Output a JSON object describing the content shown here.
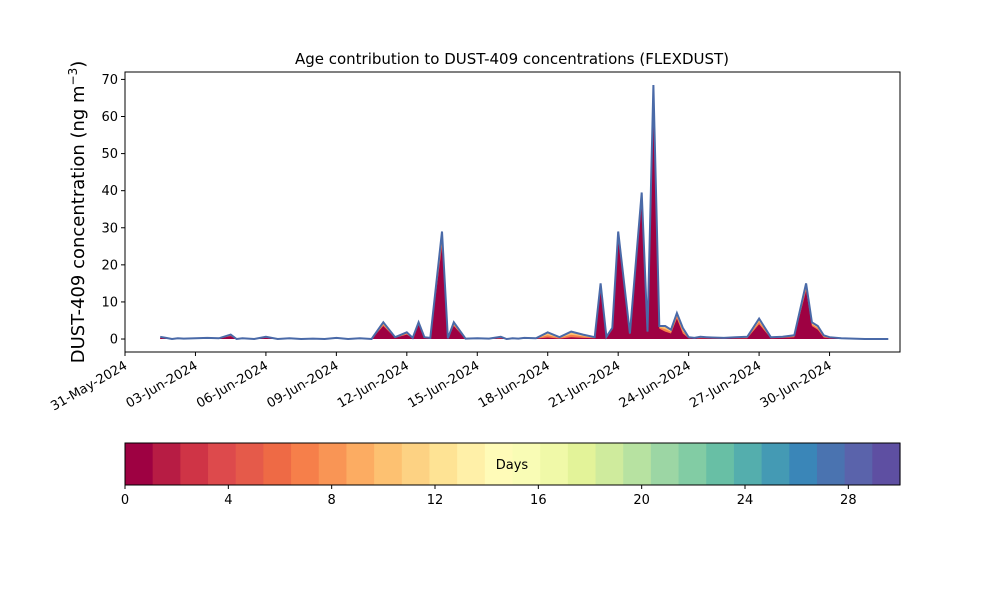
{
  "chart_data": {
    "type": "area",
    "title": "Age contribution to DUST-409 concentrations (FLEXDUST)",
    "ylabel_main": "DUST-409 concentration (ng m",
    "ylabel_sup": "−3",
    "ylabel_close": ")",
    "xlabel": "",
    "ylim": [
      -3.5,
      72
    ],
    "yticks": [
      0,
      10,
      20,
      30,
      40,
      50,
      60,
      70
    ],
    "xlim": [
      "2024-05-31T00:00",
      "2024-07-03T00:00"
    ],
    "xticks": [
      "31-May-2024",
      "03-Jun-2024",
      "06-Jun-2024",
      "09-Jun-2024",
      "12-Jun-2024",
      "15-Jun-2024",
      "18-Jun-2024",
      "21-Jun-2024",
      "24-Jun-2024",
      "27-Jun-2024",
      "30-Jun-2024"
    ],
    "grid": false,
    "total_color": "#4a6aa8",
    "series_total": {
      "name": "",
      "x": [
        "2024-06-01T12:00",
        "2024-06-01T18:00",
        "2024-06-02T00:00",
        "2024-06-02T06:00",
        "2024-06-02T12:00",
        "2024-06-03T00:00",
        "2024-06-03T12:00",
        "2024-06-04T00:00",
        "2024-06-04T12:00",
        "2024-06-04T18:00",
        "2024-06-05T00:00",
        "2024-06-05T12:00",
        "2024-06-06T00:00",
        "2024-06-06T12:00",
        "2024-06-07T00:00",
        "2024-06-07T12:00",
        "2024-06-08T00:00",
        "2024-06-08T12:00",
        "2024-06-09T00:00",
        "2024-06-09T12:00",
        "2024-06-10T00:00",
        "2024-06-10T12:00",
        "2024-06-11T00:00",
        "2024-06-11T12:00",
        "2024-06-12T00:00",
        "2024-06-12T06:00",
        "2024-06-12T12:00",
        "2024-06-12T18:00",
        "2024-06-13T00:00",
        "2024-06-13T12:00",
        "2024-06-13T18:00",
        "2024-06-14T00:00",
        "2024-06-14T12:00",
        "2024-06-15T00:00",
        "2024-06-15T12:00",
        "2024-06-16T00:00",
        "2024-06-16T06:00",
        "2024-06-16T12:00",
        "2024-06-16T18:00",
        "2024-06-17T00:00",
        "2024-06-17T12:00",
        "2024-06-18T00:00",
        "2024-06-18T12:00",
        "2024-06-19T00:00",
        "2024-06-19T12:00",
        "2024-06-20T00:00",
        "2024-06-20T06:00",
        "2024-06-20T12:00",
        "2024-06-20T18:00",
        "2024-06-21T00:00",
        "2024-06-21T12:00",
        "2024-06-22T00:00",
        "2024-06-22T06:00",
        "2024-06-22T12:00",
        "2024-06-22T18:00",
        "2024-06-23T00:00",
        "2024-06-23T06:00",
        "2024-06-23T12:00",
        "2024-06-23T18:00",
        "2024-06-24T00:00",
        "2024-06-24T06:00",
        "2024-06-24T12:00",
        "2024-06-24T18:00",
        "2024-06-25T00:00",
        "2024-06-25T12:00",
        "2024-06-26T00:00",
        "2024-06-26T12:00",
        "2024-06-27T00:00",
        "2024-06-27T12:00",
        "2024-06-28T00:00",
        "2024-06-28T12:00",
        "2024-06-29T00:00",
        "2024-06-29T06:00",
        "2024-06-29T12:00",
        "2024-06-29T18:00",
        "2024-06-30T00:00",
        "2024-06-30T12:00",
        "2024-07-01T00:00",
        "2024-07-01T12:00",
        "2024-07-02T00:00",
        "2024-07-02T12:00"
      ],
      "y": [
        0.6,
        0.3,
        0.0,
        0.2,
        0.1,
        0.2,
        0.3,
        0.2,
        1.2,
        0.0,
        0.2,
        0.0,
        0.6,
        0.0,
        0.2,
        0.0,
        0.1,
        0.0,
        0.3,
        0.0,
        0.2,
        0.0,
        4.5,
        0.5,
        1.8,
        0.3,
        4.5,
        0.5,
        0.3,
        29.0,
        0.2,
        4.5,
        0.1,
        0.2,
        0.1,
        0.6,
        0.0,
        0.2,
        0.1,
        0.3,
        0.2,
        1.8,
        0.5,
        2.0,
        1.2,
        0.5,
        15.0,
        0.6,
        3.0,
        29.0,
        1.5,
        39.5,
        2.0,
        68.5,
        3.5,
        3.5,
        2.5,
        7.0,
        3.0,
        0.5,
        0.3,
        0.6,
        0.5,
        0.4,
        0.3,
        0.5,
        0.6,
        5.5,
        0.5,
        0.6,
        1.0,
        15.0,
        4.5,
        3.5,
        1.0,
        0.5,
        0.2,
        0.1,
        0.0,
        0.0,
        0.0
      ]
    },
    "series_young": {
      "name": "",
      "y": [
        0.3,
        0.1,
        0.0,
        0.1,
        0.0,
        0.1,
        0.1,
        0.1,
        0.8,
        0.0,
        0.1,
        0.0,
        0.3,
        0.0,
        0.1,
        0.0,
        0.0,
        0.0,
        0.1,
        0.0,
        0.1,
        0.0,
        3.5,
        0.3,
        1.2,
        0.2,
        3.8,
        0.3,
        0.2,
        25.0,
        0.1,
        3.5,
        0.0,
        0.1,
        0.0,
        0.2,
        0.0,
        0.1,
        0.0,
        0.1,
        0.1,
        0.4,
        0.1,
        0.5,
        0.3,
        0.2,
        13.0,
        0.3,
        2.5,
        27.0,
        1.2,
        37.0,
        1.6,
        66.0,
        2.8,
        2.0,
        1.5,
        5.5,
        1.5,
        0.2,
        0.1,
        0.2,
        0.2,
        0.1,
        0.1,
        0.2,
        0.2,
        4.0,
        0.2,
        0.3,
        0.5,
        13.0,
        3.5,
        2.5,
        0.4,
        0.2,
        0.1,
        0.0,
        0.0,
        0.0,
        0.0
      ]
    },
    "colorbar": {
      "label": "Days",
      "min": 0,
      "max": 30,
      "ticks": [
        0,
        4,
        8,
        12,
        16,
        20,
        24,
        28
      ],
      "colors": [
        "#9e0142",
        "#b71c44",
        "#cf3446",
        "#dd4a4c",
        "#e55a4a",
        "#ee6a45",
        "#f67f4a",
        "#f99555",
        "#fcac62",
        "#fdc171",
        "#fdd283",
        "#fee394",
        "#fff0a8",
        "#fffbb8",
        "#f9fcb5",
        "#f0f9a8",
        "#e3f399",
        "#cfeb9d",
        "#b7e2a1",
        "#9cd6a4",
        "#82cca4",
        "#68bfa5",
        "#54aead",
        "#449ab4",
        "#3a86b8",
        "#4a73b0",
        "#5a63ab",
        "#5e4fa2"
      ]
    }
  }
}
